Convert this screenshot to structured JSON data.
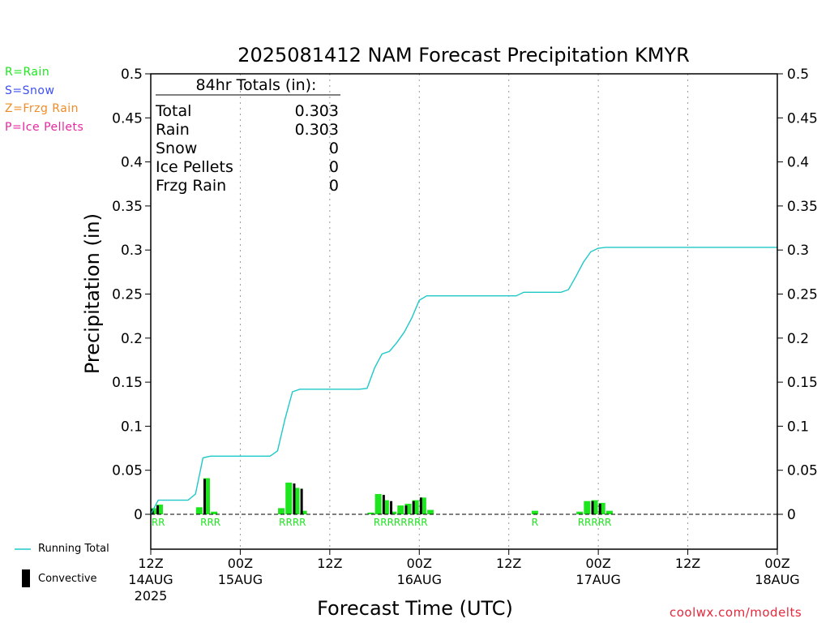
{
  "chart_data": {
    "type": "bar",
    "title": "2025081412 NAM Forecast Precipitation KMYR",
    "xlabel": "Forecast Time (UTC)",
    "ylabel": "Precipitation (in)",
    "ylim": [
      0,
      0.5
    ],
    "yticks": [
      "0",
      "0.05",
      "0.1",
      "0.15",
      "0.2",
      "0.25",
      "0.3",
      "0.35",
      "0.4",
      "0.45",
      "0.5"
    ],
    "xrange_hours": [
      0,
      84
    ],
    "xticks": [
      {
        "hour": 0,
        "lines": [
          "12Z",
          "14AUG",
          "2025"
        ]
      },
      {
        "hour": 12,
        "lines": [
          "00Z",
          "15AUG"
        ]
      },
      {
        "hour": 24,
        "lines": [
          "12Z"
        ]
      },
      {
        "hour": 36,
        "lines": [
          "00Z",
          "16AUG"
        ]
      },
      {
        "hour": 48,
        "lines": [
          "12Z"
        ]
      },
      {
        "hour": 60,
        "lines": [
          "00Z",
          "17AUG"
        ]
      },
      {
        "hour": 72,
        "lines": [
          "12Z"
        ]
      },
      {
        "hour": 84,
        "lines": [
          "00Z",
          "18AUG"
        ]
      }
    ],
    "grid": "vertical dotted",
    "series": [
      {
        "name": "Running Total",
        "type": "line",
        "color": "#1ec8c8",
        "points": [
          [
            0,
            0
          ],
          [
            1,
            0.016
          ],
          [
            2,
            0.016
          ],
          [
            3,
            0.016
          ],
          [
            4,
            0.016
          ],
          [
            5,
            0.016
          ],
          [
            6,
            0.023
          ],
          [
            7,
            0.064
          ],
          [
            8,
            0.066
          ],
          [
            9,
            0.066
          ],
          [
            10,
            0.066
          ],
          [
            11,
            0.066
          ],
          [
            12,
            0.066
          ],
          [
            13,
            0.066
          ],
          [
            14,
            0.066
          ],
          [
            15,
            0.066
          ],
          [
            16,
            0.066
          ],
          [
            17,
            0.072
          ],
          [
            18,
            0.108
          ],
          [
            19,
            0.139
          ],
          [
            20,
            0.142
          ],
          [
            21,
            0.142
          ],
          [
            22,
            0.142
          ],
          [
            23,
            0.142
          ],
          [
            24,
            0.142
          ],
          [
            25,
            0.142
          ],
          [
            26,
            0.142
          ],
          [
            27,
            0.142
          ],
          [
            28,
            0.142
          ],
          [
            29,
            0.143
          ],
          [
            30,
            0.166
          ],
          [
            31,
            0.182
          ],
          [
            32,
            0.185
          ],
          [
            33,
            0.195
          ],
          [
            34,
            0.207
          ],
          [
            35,
            0.223
          ],
          [
            36,
            0.243
          ],
          [
            37,
            0.248
          ],
          [
            38,
            0.248
          ],
          [
            39,
            0.248
          ],
          [
            40,
            0.248
          ],
          [
            41,
            0.248
          ],
          [
            42,
            0.248
          ],
          [
            43,
            0.248
          ],
          [
            44,
            0.248
          ],
          [
            45,
            0.248
          ],
          [
            46,
            0.248
          ],
          [
            47,
            0.248
          ],
          [
            48,
            0.248
          ],
          [
            49,
            0.248
          ],
          [
            50,
            0.252
          ],
          [
            51,
            0.252
          ],
          [
            52,
            0.252
          ],
          [
            53,
            0.252
          ],
          [
            54,
            0.252
          ],
          [
            55,
            0.252
          ],
          [
            56,
            0.255
          ],
          [
            57,
            0.27
          ],
          [
            58,
            0.286
          ],
          [
            59,
            0.298
          ],
          [
            60,
            0.302
          ],
          [
            61,
            0.303
          ],
          [
            62,
            0.303
          ],
          [
            66,
            0.303
          ],
          [
            72,
            0.303
          ],
          [
            78,
            0.303
          ],
          [
            84,
            0.303
          ]
        ]
      },
      {
        "name": "Convective",
        "type": "bar",
        "color": "#000000",
        "points": [
          [
            0.5,
            0.006
          ],
          [
            1.2,
            0.01
          ],
          [
            7.5,
            0.04
          ],
          [
            19.5,
            0.035
          ],
          [
            20.5,
            0.029
          ],
          [
            31.5,
            0.022
          ],
          [
            32.5,
            0.015
          ],
          [
            34.5,
            0.01
          ],
          [
            35.5,
            0.015
          ],
          [
            36.5,
            0.019
          ],
          [
            59.5,
            0.015
          ],
          [
            60.5,
            0.012
          ]
        ]
      },
      {
        "name": "Rain",
        "type": "bar",
        "color": "#1ee61e",
        "points": [
          [
            0.5,
            0.007
          ],
          [
            1.2,
            0.011
          ],
          [
            6.5,
            0.008
          ],
          [
            7.5,
            0.041
          ],
          [
            8.5,
            0.003
          ],
          [
            17.5,
            0.007
          ],
          [
            18.5,
            0.036
          ],
          [
            19.5,
            0.03
          ],
          [
            20.5,
            0.004
          ],
          [
            29.5,
            0.002
          ],
          [
            30.5,
            0.023
          ],
          [
            31.5,
            0.016
          ],
          [
            32.5,
            0.003
          ],
          [
            33.5,
            0.01
          ],
          [
            34.5,
            0.012
          ],
          [
            35.5,
            0.016
          ],
          [
            36.5,
            0.019
          ],
          [
            37.5,
            0.005
          ],
          [
            51.5,
            0.004
          ],
          [
            57.5,
            0.003
          ],
          [
            58.5,
            0.015
          ],
          [
            59.5,
            0.016
          ],
          [
            60.5,
            0.013
          ],
          [
            61.5,
            0.004
          ]
        ]
      }
    ],
    "ptype_codes": [
      {
        "hour": 1.0,
        "code": "RR"
      },
      {
        "hour": 8.0,
        "code": "RRR"
      },
      {
        "hour": 19.0,
        "code": "RRRR"
      },
      {
        "hour": 33.5,
        "code": "RRRRRRRR"
      },
      {
        "hour": 51.5,
        "code": "R"
      },
      {
        "hour": 59.5,
        "code": "RRRRR"
      }
    ],
    "totals_box": {
      "header": "84hr Totals (in):",
      "rows": [
        {
          "label": "Total",
          "value": "0.303"
        },
        {
          "label": "Rain",
          "value": "0.303"
        },
        {
          "label": "Snow",
          "value": "0"
        },
        {
          "label": "Ice Pellets",
          "value": "0"
        },
        {
          "label": "Frzg Rain",
          "value": "0"
        }
      ]
    }
  },
  "ptype_legend": [
    {
      "text": "R=Rain",
      "color": "#1ee61e"
    },
    {
      "text": "S=Snow",
      "color": "#3c50f0"
    },
    {
      "text": "Z=Frzg Rain",
      "color": "#f08c28"
    },
    {
      "text": "P=Ice Pellets",
      "color": "#e628a0"
    }
  ],
  "series_legend": {
    "running_total": "Running Total",
    "convective": "Convective"
  },
  "credit": "coolwx.com/modelts",
  "colors": {
    "rain": "#1ee61e",
    "running_total": "#1ec8c8",
    "credit": "#e6283c"
  }
}
